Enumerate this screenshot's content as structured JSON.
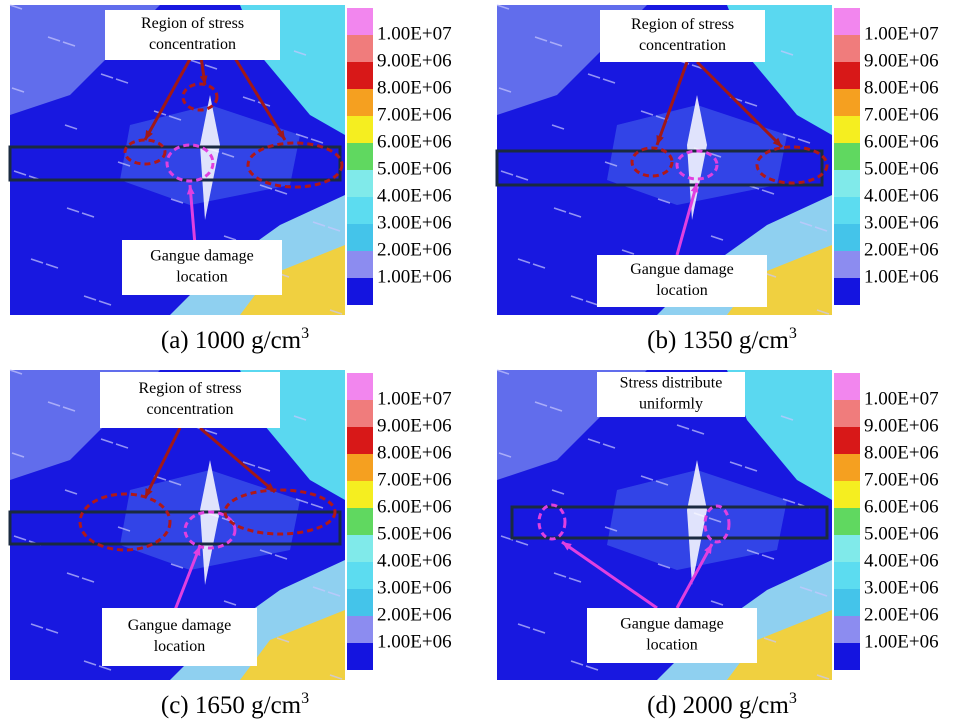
{
  "colorbar": {
    "labels": [
      "1.00E+07",
      "9.00E+06",
      "8.00E+06",
      "7.00E+06",
      "6.00E+06",
      "5.00E+06",
      "4.00E+06",
      "3.00E+06",
      "2.00E+06",
      "1.00E+06"
    ],
    "colors": [
      "#f286ee",
      "#f07c7c",
      "#d81818",
      "#f5a020",
      "#f5ee20",
      "#60d860",
      "#80eaea",
      "#5cdcf0",
      "#44c4ea",
      "#8c8cf0",
      "#1414e0"
    ]
  },
  "panels": [
    {
      "caption": {
        "text": "(a) 1000 g/cm",
        "sup": "3"
      },
      "top_note": [
        "Region of stress",
        "concentration"
      ],
      "bottom_note": [
        "Gangue damage",
        "location"
      ]
    },
    {
      "caption": {
        "text": "(b) 1350 g/cm",
        "sup": "3"
      },
      "top_note": [
        "Region of stress",
        "concentration"
      ],
      "bottom_note": [
        "Gangue damage",
        "location"
      ]
    },
    {
      "caption": {
        "text": "(c) 1650 g/cm",
        "sup": "3"
      },
      "top_note": [
        "Region of stress",
        "concentration"
      ],
      "bottom_note": [
        "Gangue damage",
        "location"
      ]
    },
    {
      "caption": {
        "text": "(d) 2000 g/cm",
        "sup": "3"
      },
      "top_note": [
        "Stress  distribute",
        "uniformly"
      ],
      "bottom_note": [
        "Gangue damage",
        "location"
      ]
    }
  ]
}
